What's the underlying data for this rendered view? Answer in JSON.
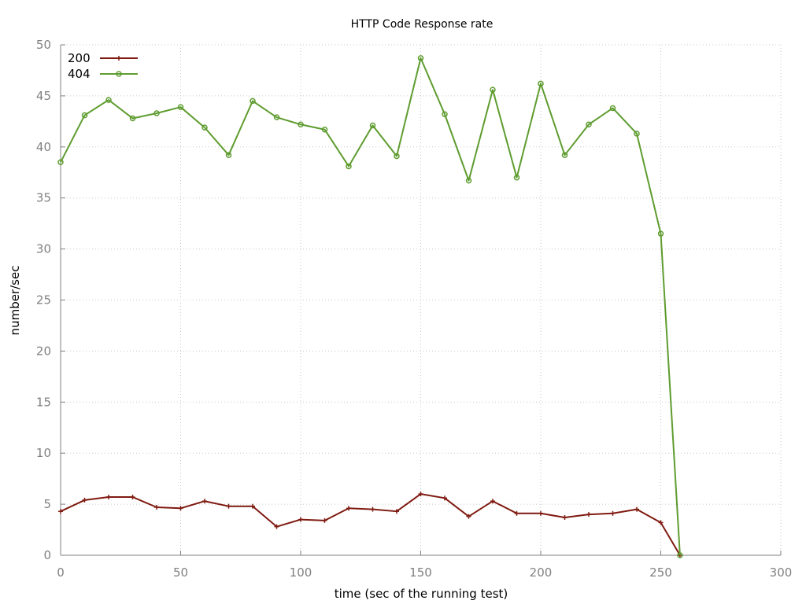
{
  "chart_data": {
    "type": "line",
    "title": "HTTP Code Response rate",
    "xlabel": "time (sec of the running test)",
    "ylabel": "number/sec",
    "xlim": [
      0,
      300
    ],
    "ylim": [
      0,
      50
    ],
    "xticks": [
      0,
      50,
      100,
      150,
      200,
      250,
      300
    ],
    "yticks": [
      0,
      5,
      10,
      15,
      20,
      25,
      30,
      35,
      40,
      45,
      50
    ],
    "grid": true,
    "legend_position": "top-left",
    "series": [
      {
        "name": "200",
        "color": "#7f1a10",
        "marker": "plus",
        "points": [
          [
            0,
            4.3
          ],
          [
            10,
            5.4
          ],
          [
            20,
            5.7
          ],
          [
            30,
            5.7
          ],
          [
            40,
            4.7
          ],
          [
            50,
            4.6
          ],
          [
            60,
            5.3
          ],
          [
            70,
            4.8
          ],
          [
            80,
            4.8
          ],
          [
            90,
            2.8
          ],
          [
            100,
            3.5
          ],
          [
            110,
            3.4
          ],
          [
            120,
            4.6
          ],
          [
            130,
            4.5
          ],
          [
            140,
            4.3
          ],
          [
            150,
            6.0
          ],
          [
            160,
            5.6
          ],
          [
            170,
            3.8
          ],
          [
            180,
            5.3
          ],
          [
            190,
            4.1
          ],
          [
            200,
            4.1
          ],
          [
            210,
            3.7
          ],
          [
            220,
            4.0
          ],
          [
            230,
            4.1
          ],
          [
            240,
            4.5
          ],
          [
            250,
            3.2
          ],
          [
            258,
            0.0
          ]
        ]
      },
      {
        "name": "404",
        "color": "#5e9c2f",
        "marker": "circle",
        "points": [
          [
            0,
            38.5
          ],
          [
            10,
            43.1
          ],
          [
            20,
            44.6
          ],
          [
            30,
            42.8
          ],
          [
            40,
            43.3
          ],
          [
            50,
            43.9
          ],
          [
            60,
            41.9
          ],
          [
            70,
            39.2
          ],
          [
            80,
            44.5
          ],
          [
            90,
            42.9
          ],
          [
            100,
            42.2
          ],
          [
            110,
            41.7
          ],
          [
            120,
            38.1
          ],
          [
            130,
            42.1
          ],
          [
            140,
            39.1
          ],
          [
            150,
            48.7
          ],
          [
            160,
            43.2
          ],
          [
            170,
            36.7
          ],
          [
            180,
            45.6
          ],
          [
            190,
            37.0
          ],
          [
            200,
            46.2
          ],
          [
            210,
            39.2
          ],
          [
            220,
            42.2
          ],
          [
            230,
            43.8
          ],
          [
            240,
            41.3
          ],
          [
            250,
            31.5
          ],
          [
            258,
            0.0
          ]
        ]
      }
    ]
  }
}
